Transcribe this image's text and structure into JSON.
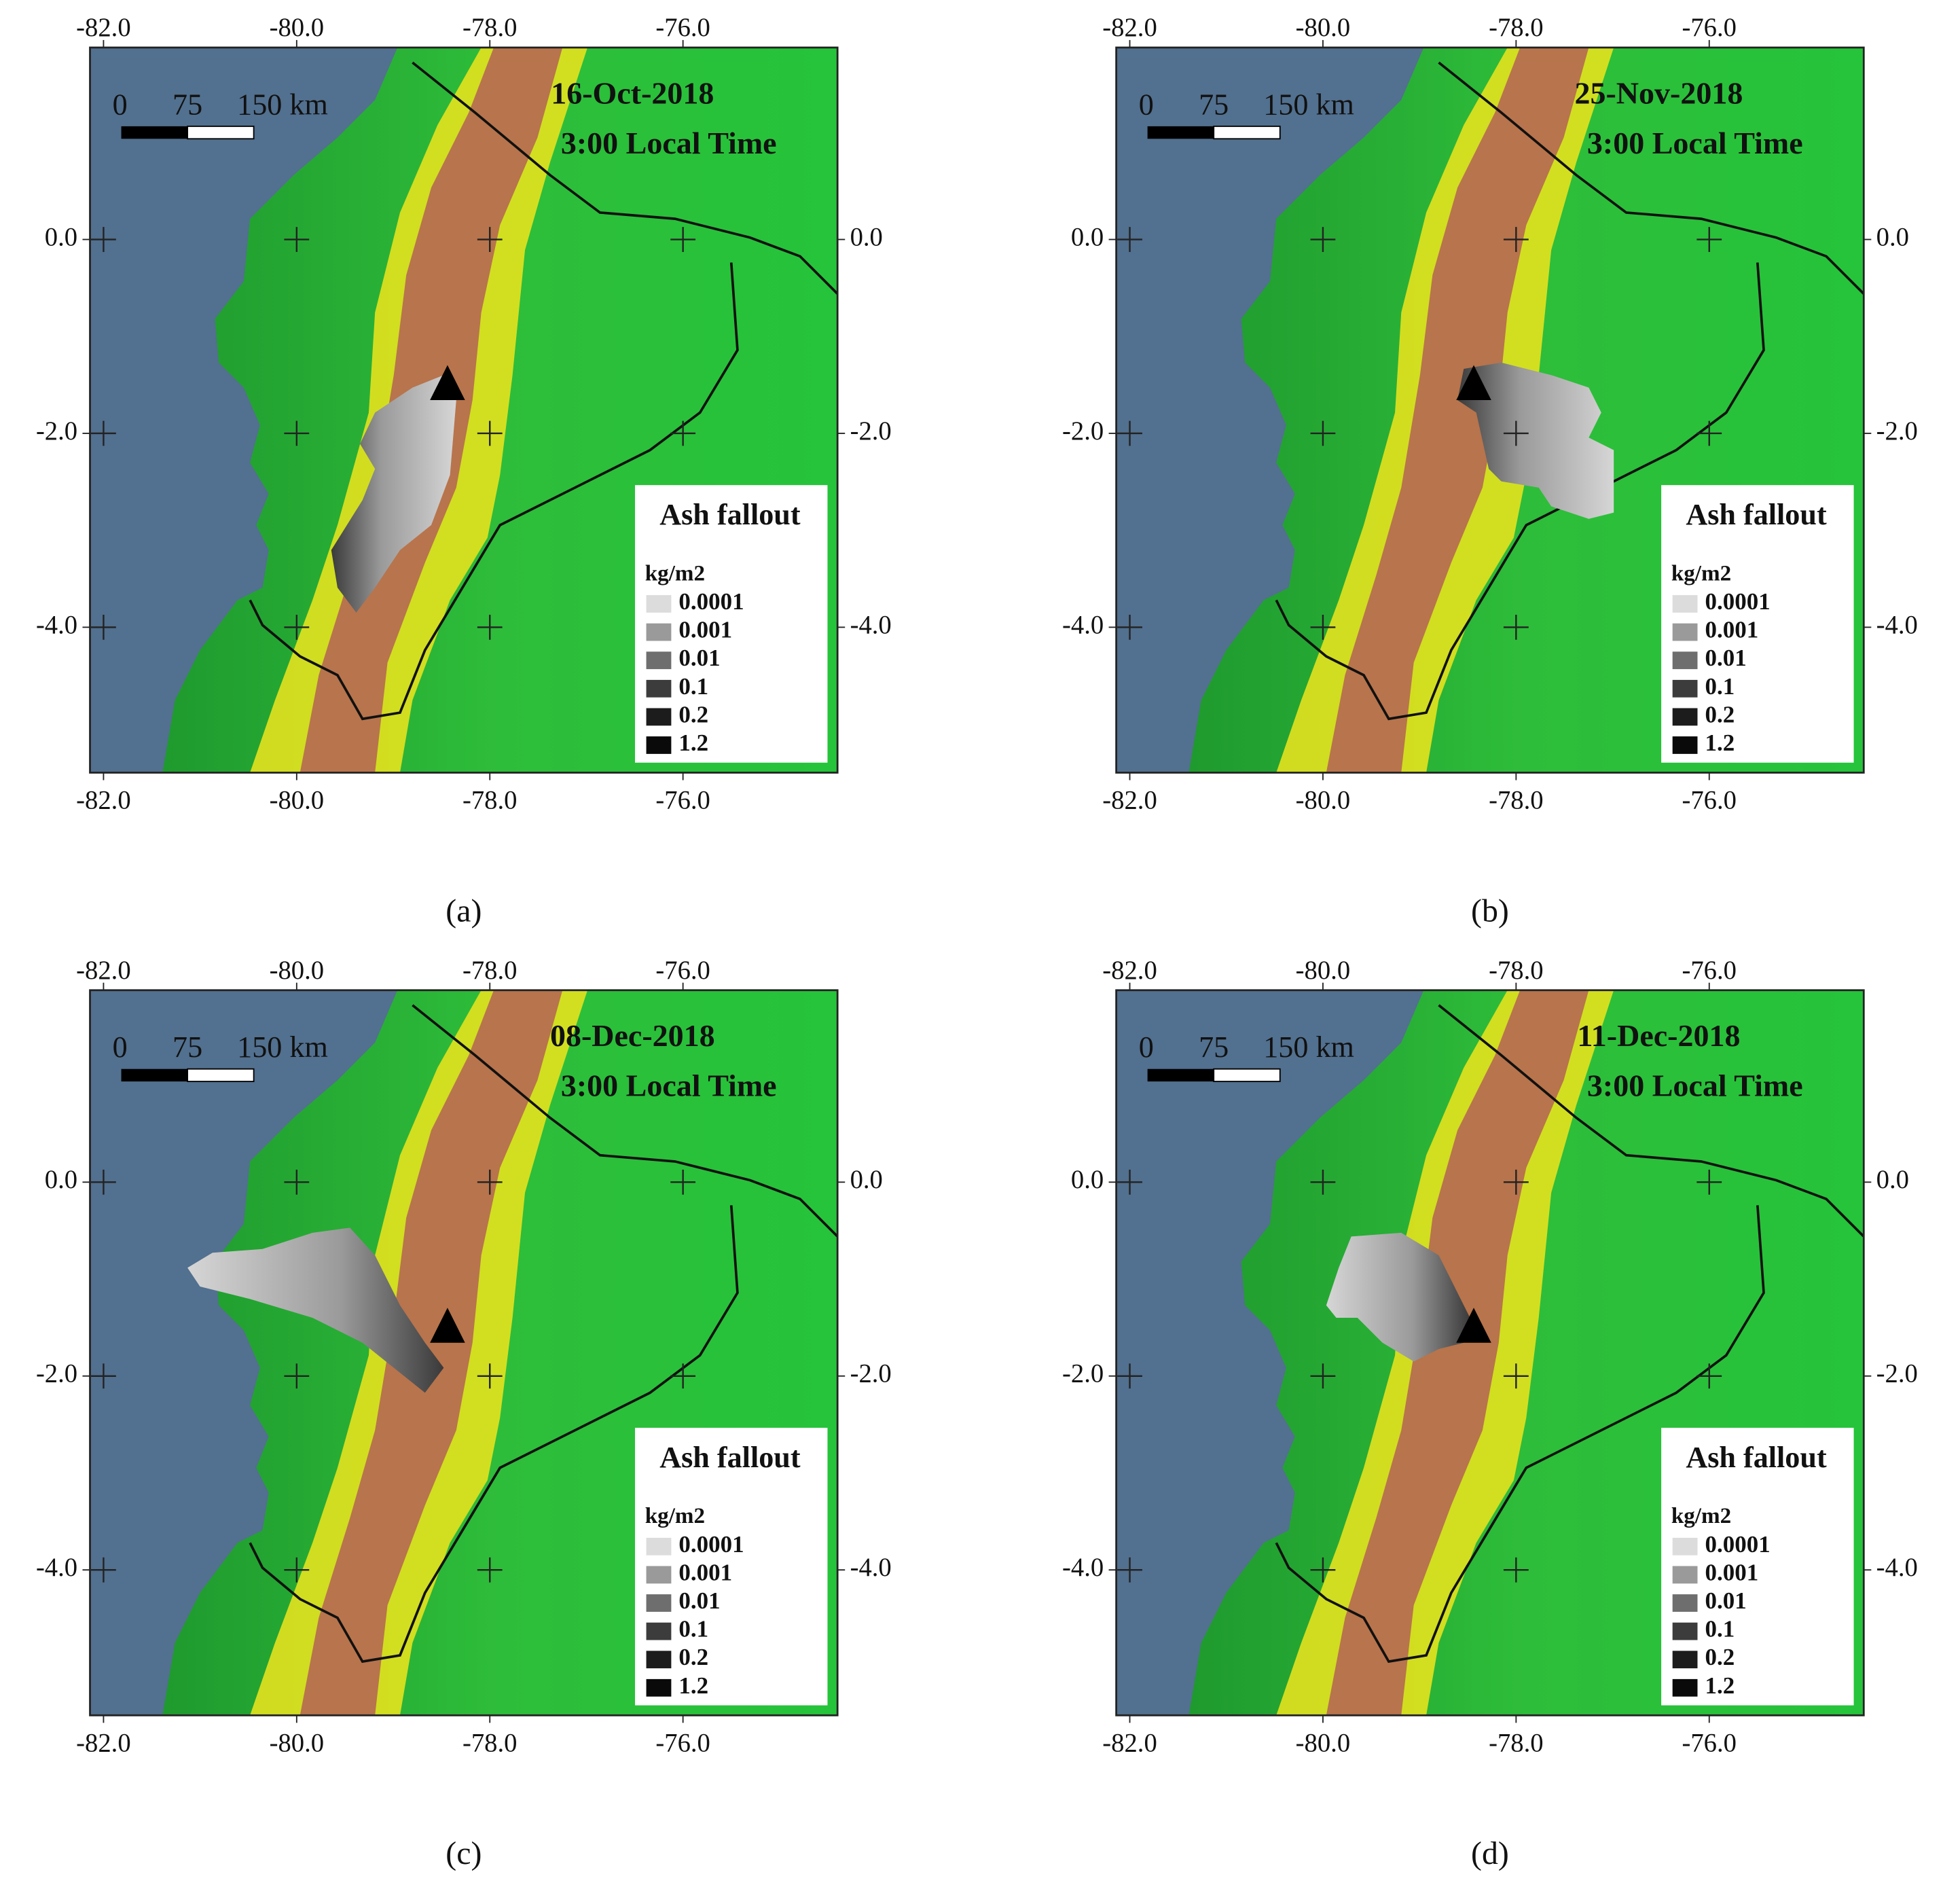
{
  "figure": {
    "xlim": [
      -82.14,
      -74.4
    ],
    "ylim": [
      -5.5,
      1.98
    ],
    "xticks": [
      {
        "value": -82,
        "label": "-82.0"
      },
      {
        "value": -80,
        "label": "-80.0"
      },
      {
        "value": -78,
        "label": "-78.0"
      },
      {
        "value": -76,
        "label": "-76.0"
      }
    ],
    "yticks": [
      {
        "value": 0,
        "label": "0.0"
      },
      {
        "value": -2,
        "label": "-2.0"
      },
      {
        "value": -4,
        "label": "-4.0"
      }
    ],
    "scale_bar": [
      "0",
      "75",
      "150 km"
    ],
    "legend": {
      "title": "Ash fallout",
      "unit": "kg/m2",
      "entries": [
        "0.0001",
        "0.001",
        "0.01",
        "0.1",
        "0.2",
        "1.2"
      ]
    },
    "panels": [
      {
        "date": "16-Oct-2018",
        "time": "3:00 Local Time",
        "caption": "(a)"
      },
      {
        "date": "25-Nov-2018",
        "time": "3:00 Local Time",
        "caption": "(b)"
      },
      {
        "date": "08-Dec-2018",
        "time": "3:00 Local Time",
        "caption": "(c)"
      },
      {
        "date": "11-Dec-2018",
        "time": "3:00 Local Time",
        "caption": "(d)"
      }
    ]
  }
}
